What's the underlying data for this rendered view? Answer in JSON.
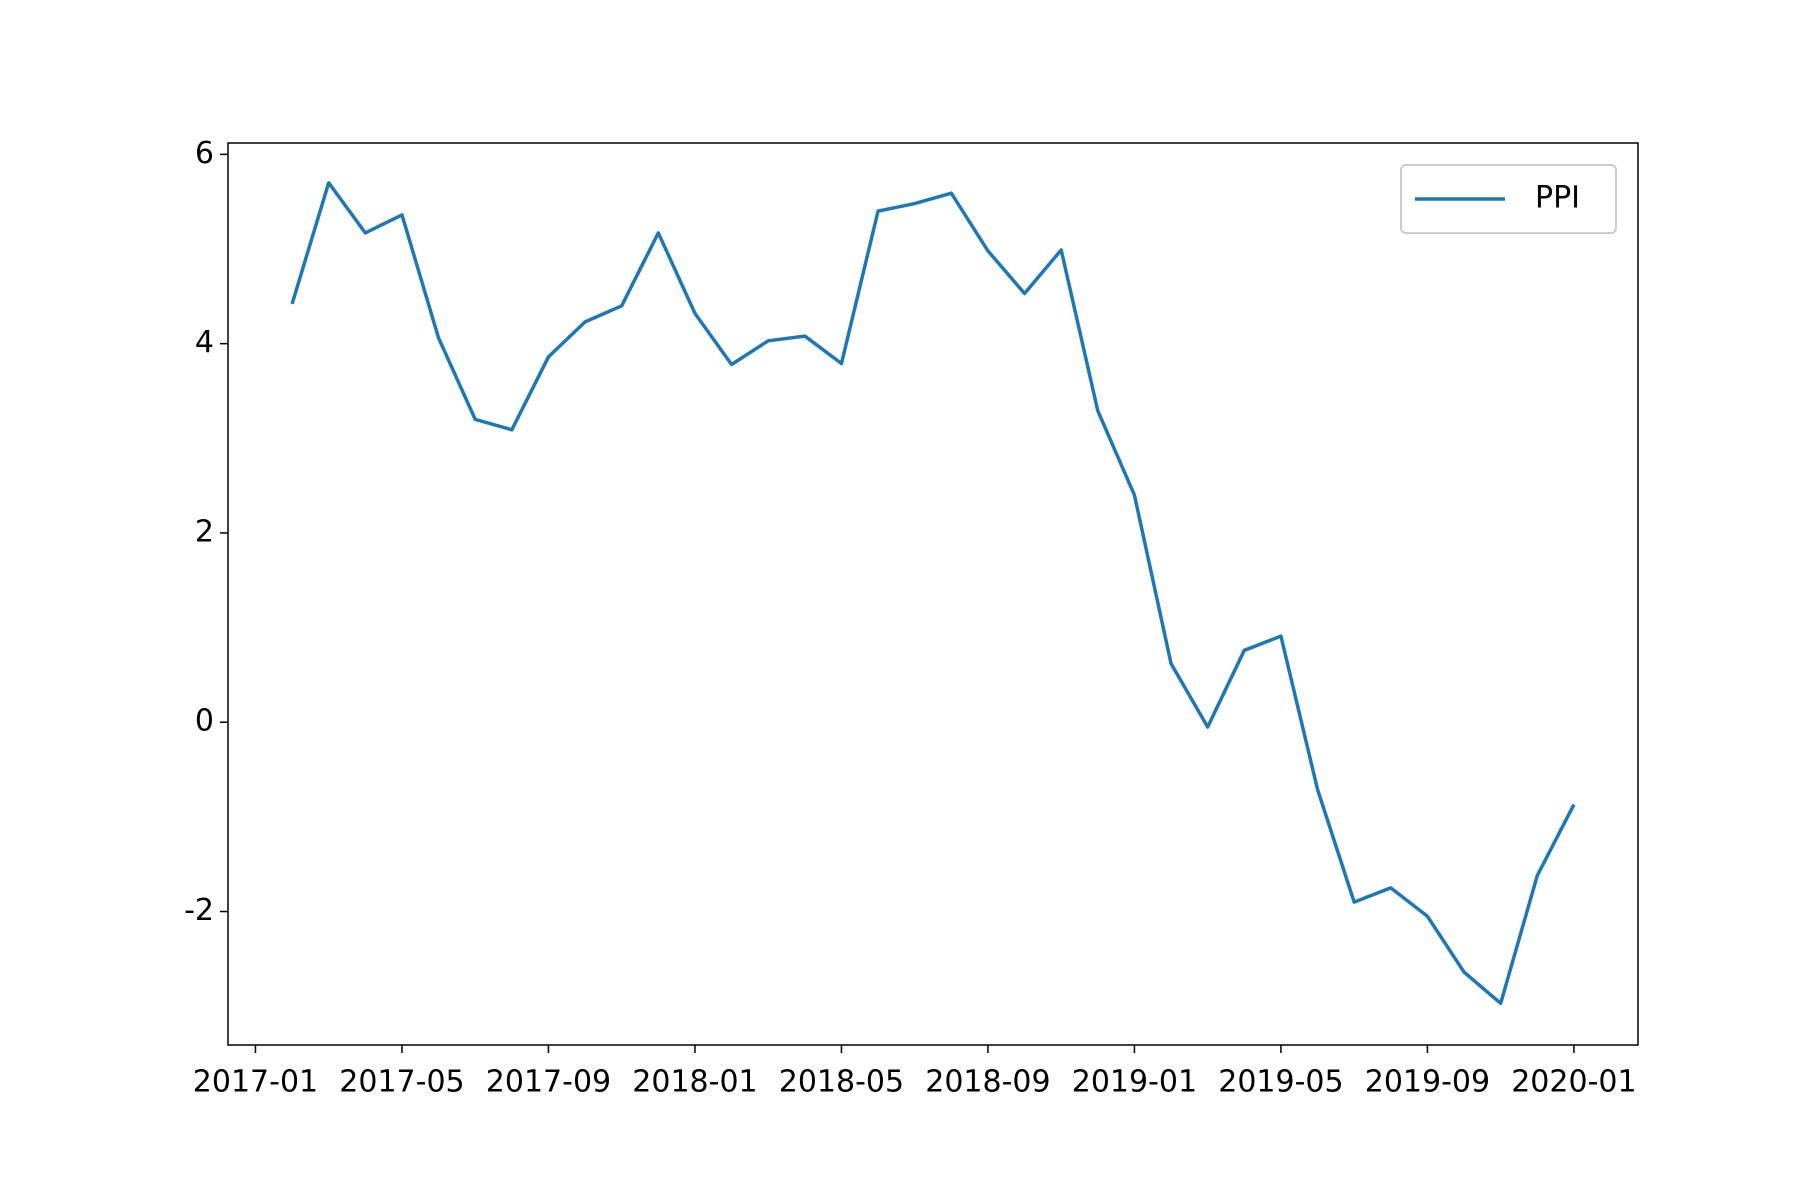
{
  "chart_data": {
    "type": "line",
    "x": [
      "2017-02",
      "2017-03",
      "2017-04",
      "2017-05",
      "2017-06",
      "2017-07",
      "2017-08",
      "2017-09",
      "2017-10",
      "2017-11",
      "2017-12",
      "2018-01",
      "2018-02",
      "2018-03",
      "2018-04",
      "2018-05",
      "2018-06",
      "2018-07",
      "2018-08",
      "2018-09",
      "2018-10",
      "2018-11",
      "2018-12",
      "2019-01",
      "2019-02",
      "2019-03",
      "2019-04",
      "2019-05",
      "2019-06",
      "2019-07",
      "2019-08",
      "2019-09",
      "2019-10",
      "2019-11",
      "2019-12",
      "2020-01"
    ],
    "series": [
      {
        "name": "PPI",
        "color": "#1f77b4",
        "values": [
          4.42,
          5.7,
          5.17,
          5.36,
          4.06,
          3.2,
          3.09,
          3.86,
          4.23,
          4.4,
          5.17,
          4.32,
          3.78,
          4.03,
          4.08,
          3.79,
          5.4,
          5.48,
          5.59,
          4.98,
          4.53,
          4.99,
          3.29,
          2.4,
          0.62,
          -0.05,
          0.76,
          0.91,
          -0.71,
          -1.9,
          -1.75,
          -2.05,
          -2.64,
          -2.97,
          -1.62,
          -0.87
        ]
      }
    ],
    "xticks": [
      "2017-01",
      "2017-05",
      "2017-09",
      "2018-01",
      "2018-05",
      "2018-09",
      "2019-01",
      "2019-05",
      "2019-09",
      "2020-01"
    ],
    "ylim": [
      -3.41,
      6.12
    ],
    "yticks": [
      -2,
      0,
      2,
      4,
      6
    ],
    "legend": "upper right"
  }
}
